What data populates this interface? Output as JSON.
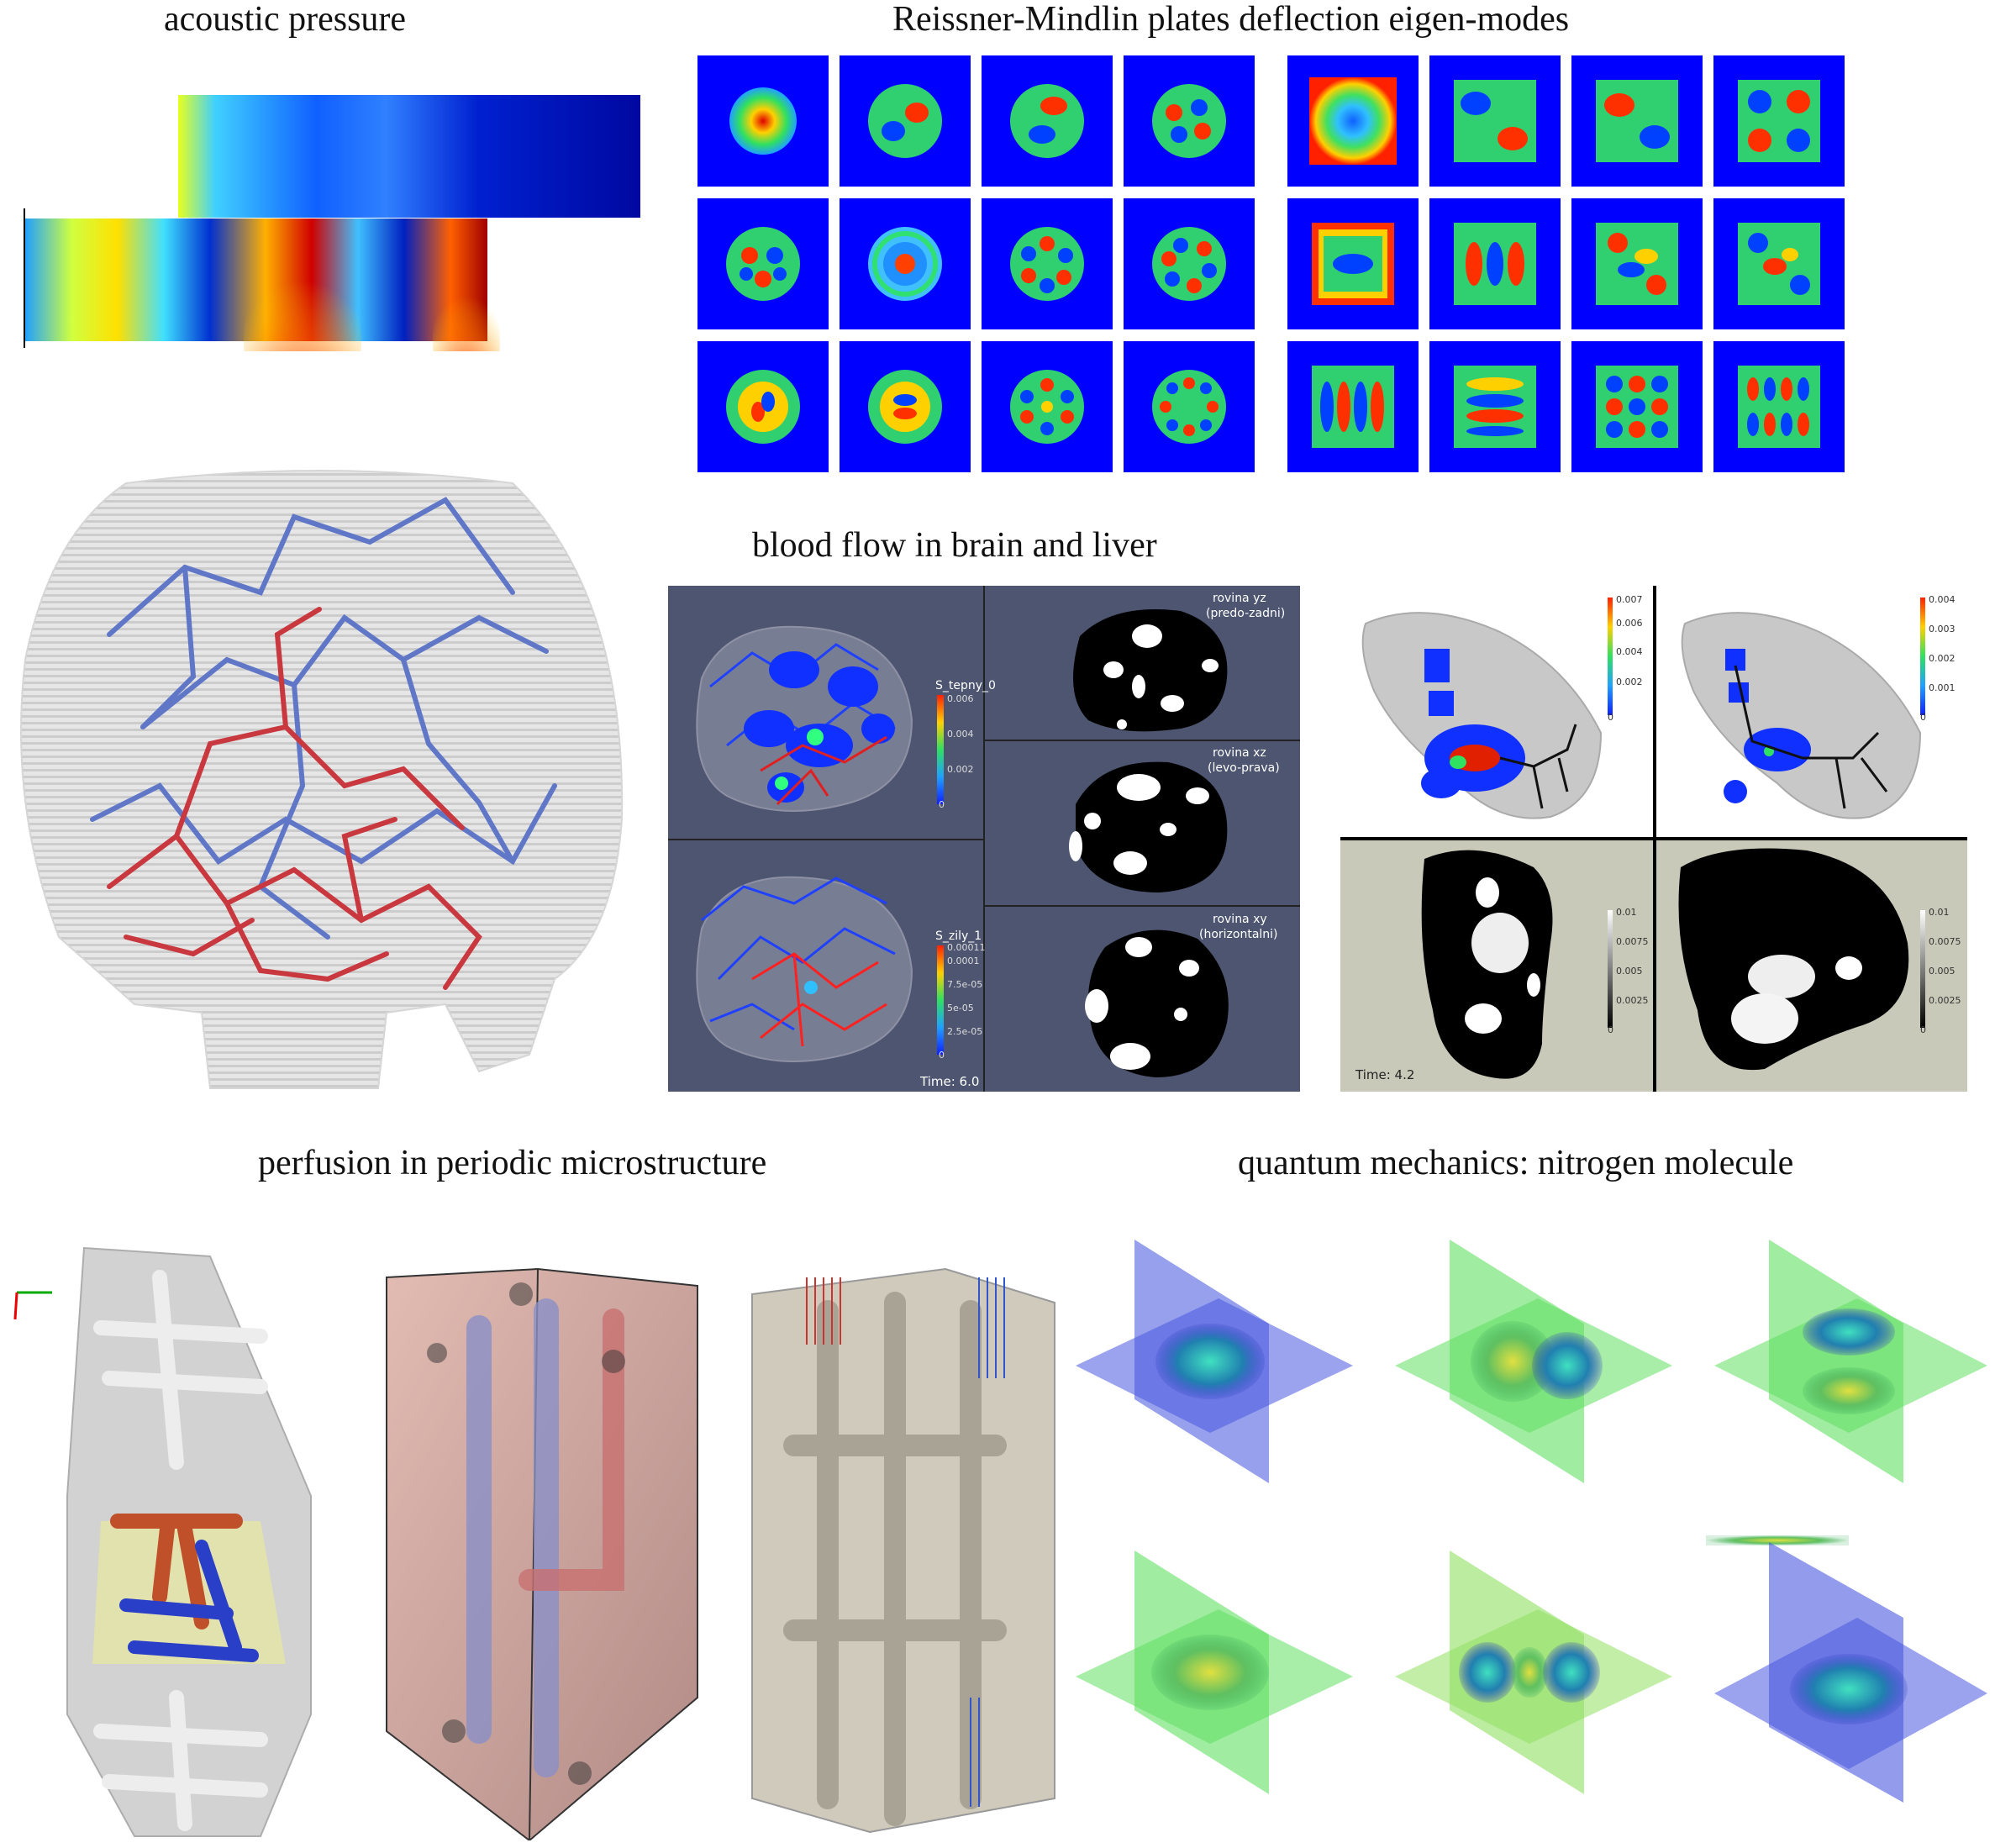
{
  "titles": {
    "acoustic": "acoustic pressure",
    "plates": "Reissner-Mindlin plates deflection eigen-modes",
    "blood": "blood flow in brain and liver",
    "perfusion": "perfusion in periodic microstructure",
    "quantum": "quantum mechanics: nitrogen molecule"
  },
  "brain_panel": {
    "top_legend_title": "S_tepny_0",
    "top_ticks": [
      "0.006",
      "0.004",
      "0.002",
      "0"
    ],
    "bottom_legend_title": "S_zily_1",
    "bottom_ticks": [
      "0.00011",
      "0.0001",
      "7.5e-05",
      "5e-05",
      "2.5e-05",
      "0"
    ],
    "time": "Time: 6.0",
    "slices": [
      {
        "name": "rovina yz",
        "sub": "(predo-zadni)"
      },
      {
        "name": "rovina xz",
        "sub": "(levo-prava)"
      },
      {
        "name": "rovina xy",
        "sub": "(horizontalni)"
      }
    ]
  },
  "liver_panel": {
    "tl_ticks": [
      "0.007",
      "0.006",
      "0.004",
      "0.002",
      "0"
    ],
    "tr_ticks": [
      "0.004",
      "0.003",
      "0.002",
      "0.001",
      "0"
    ],
    "bl_ticks": [
      "0.01",
      "0.0075",
      "0.005",
      "0.0025",
      "0"
    ],
    "br_ticks": [
      "0.01",
      "0.0075",
      "0.005",
      "0.0025",
      "0"
    ],
    "time": "Time: 4.2"
  },
  "colors": {
    "plate_bg": "#0000ff",
    "brain_panel_bg": "#4d5570",
    "liver_bottom_bg": "#c9c9b9",
    "vessel_red": "#c8383e",
    "vessel_blue": "#4a64c8"
  }
}
